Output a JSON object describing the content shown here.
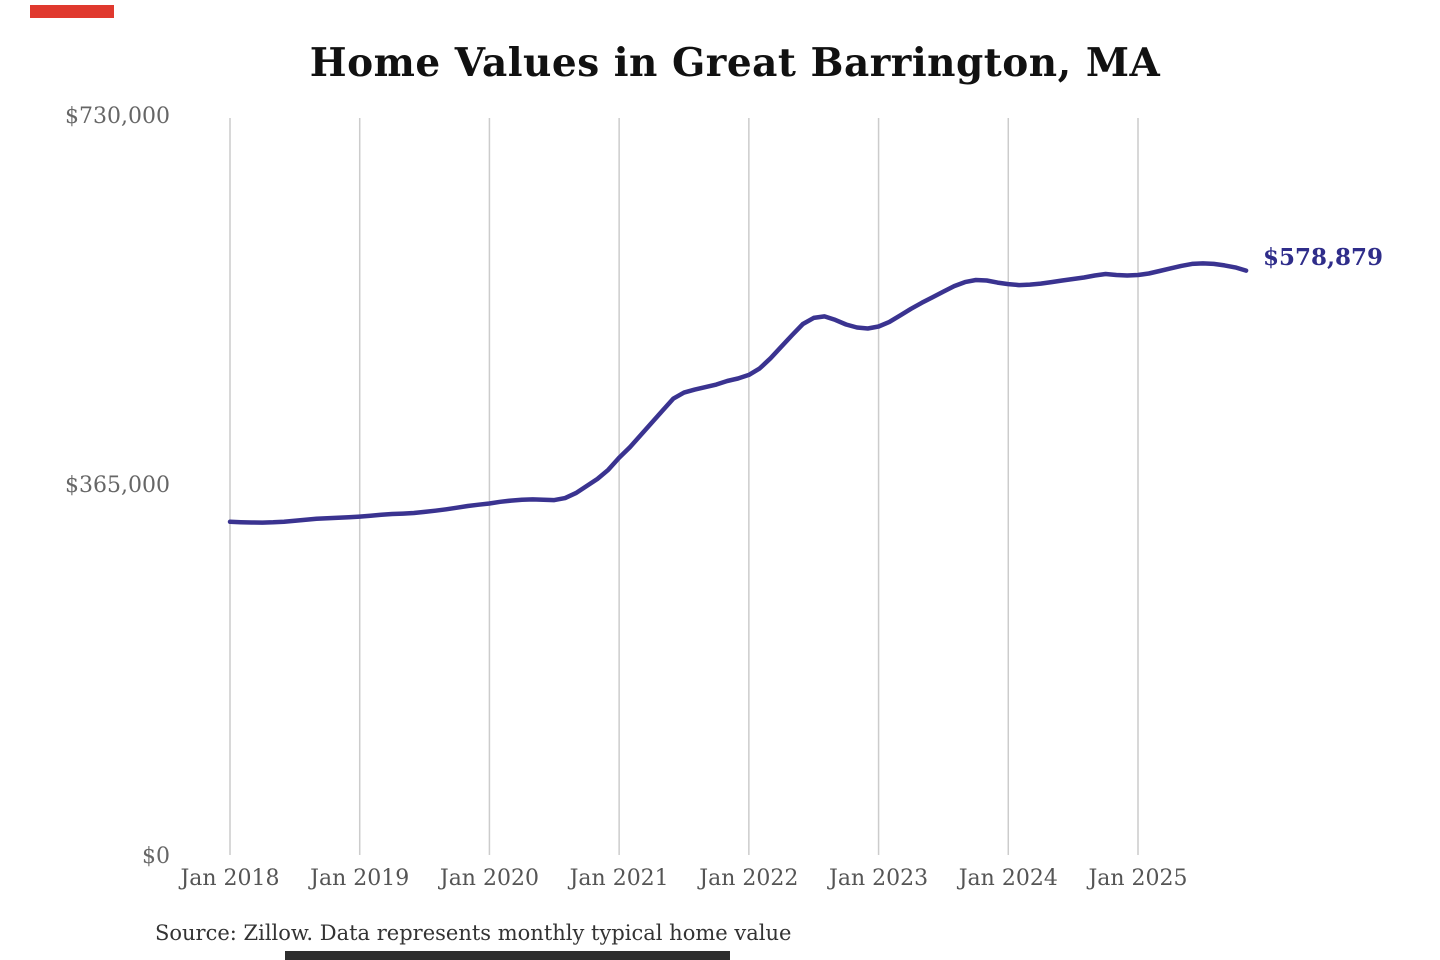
{
  "title": "Home Values in Great Barrington, MA",
  "source_note": "Source: Zillow. Data represents monthly typical home value",
  "end_value_label": "$578,879",
  "colors": {
    "line": "#3a3390",
    "end_label": "#2f2d8a",
    "grid": "#cccccc",
    "title": "#111111",
    "y_tick_label": "#666666",
    "x_tick_label": "#555555",
    "source": "#333333",
    "redaction_top_bar": "#e0392e",
    "redaction_bottom_bar": "#2e2e2e"
  },
  "chart_data": {
    "type": "line",
    "title": "Home Values in Great Barrington, MA",
    "xlabel": "",
    "ylabel": "",
    "ylim": [
      0,
      730000
    ],
    "y_tick_labels": [
      "$730,000",
      "$365,000",
      "$0"
    ],
    "y_tick_values": [
      730000,
      365000,
      0
    ],
    "x_tick_labels": [
      "Jan 2018",
      "Jan 2019",
      "Jan 2020",
      "Jan 2021",
      "Jan 2022",
      "Jan 2023",
      "Jan 2024",
      "Jan 2025"
    ],
    "x_start": "2018-01",
    "x_end": "2025-11",
    "frequency": "monthly",
    "grid": "vertical-only",
    "legend": "none",
    "annotation_last_value": "$578,879",
    "series": [
      {
        "name": "Typical home value",
        "values": [
          330000,
          329600,
          329300,
          329200,
          329500,
          330100,
          331000,
          332000,
          333000,
          333600,
          334100,
          334600,
          335200,
          336000,
          337000,
          337800,
          338200,
          338800,
          339800,
          341000,
          342400,
          344000,
          345700,
          347000,
          348200,
          349800,
          351000,
          351900,
          352200,
          351900,
          351500,
          353500,
          358500,
          365500,
          372500,
          381500,
          393500,
          404000,
          416000,
          428000,
          440000,
          452000,
          458000,
          461000,
          463500,
          466000,
          469500,
          472000,
          475500,
          482000,
          492000,
          503500,
          515000,
          526000,
          532000,
          533500,
          530000,
          525500,
          522500,
          521500,
          523500,
          528000,
          534500,
          541000,
          547000,
          552500,
          558000,
          563500,
          567500,
          569500,
          569000,
          567000,
          565500,
          564500,
          565000,
          566000,
          567500,
          569000,
          570500,
          572000,
          574000,
          575500,
          574500,
          574000,
          574500,
          576000,
          578500,
          581000,
          583500,
          585500,
          586000,
          585500,
          584000,
          582000,
          578879
        ]
      }
    ]
  }
}
